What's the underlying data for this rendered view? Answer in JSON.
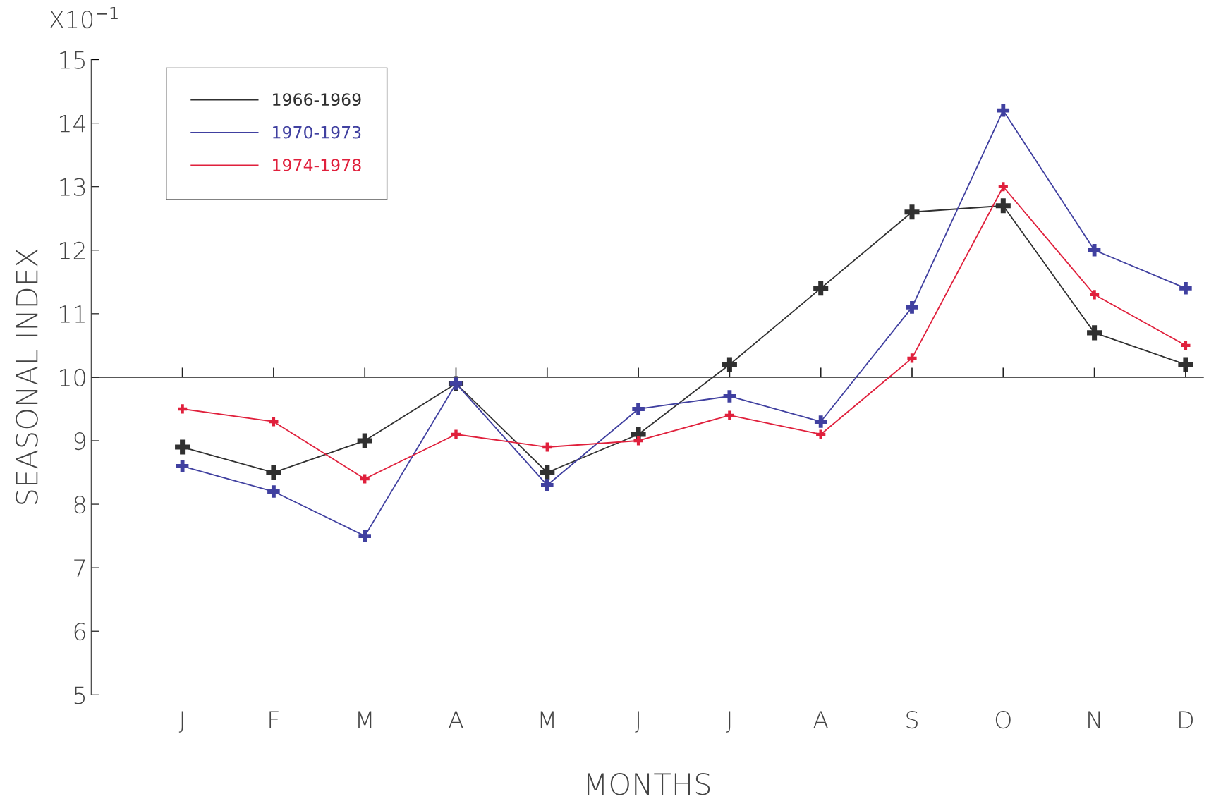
{
  "chart_data": {
    "type": "line",
    "xlabel": "MONTHS",
    "ylabel": "SEASONAL INDEX",
    "annotations": [
      "X10$^{−1}$"
    ],
    "categories": [
      "J",
      "F",
      "M",
      "A",
      "M",
      "J",
      "J",
      "A",
      "S",
      "O",
      "N",
      "D"
    ],
    "series": [
      {
        "name": "1966-1969",
        "color": "#303030",
        "values": [
          8.9,
          8.5,
          9.0,
          9.9,
          8.5,
          9.1,
          10.2,
          11.4,
          12.6,
          12.7,
          10.7,
          10.2
        ]
      },
      {
        "name": "1970-1973",
        "color": "#4040a0",
        "values": [
          8.6,
          8.2,
          7.5,
          9.9,
          8.3,
          9.5,
          9.7,
          9.3,
          11.1,
          14.2,
          12.0,
          11.4
        ]
      },
      {
        "name": "1974-1978",
        "color": "#e0203c",
        "values": [
          9.5,
          9.3,
          8.4,
          9.1,
          8.9,
          9.0,
          9.4,
          9.1,
          10.3,
          13.0,
          11.3,
          10.5
        ]
      }
    ],
    "ylim": [
      5,
      15
    ],
    "yticks": [
      5,
      6,
      7,
      8,
      9,
      10,
      11,
      12,
      13,
      14,
      15
    ],
    "ref_lines": [
      {
        "axis": "y",
        "value": 10,
        "label": null,
        "color": "#202020"
      }
    ],
    "marker": "cross",
    "line_style": "solid",
    "grid": false,
    "legend": "top left"
  }
}
